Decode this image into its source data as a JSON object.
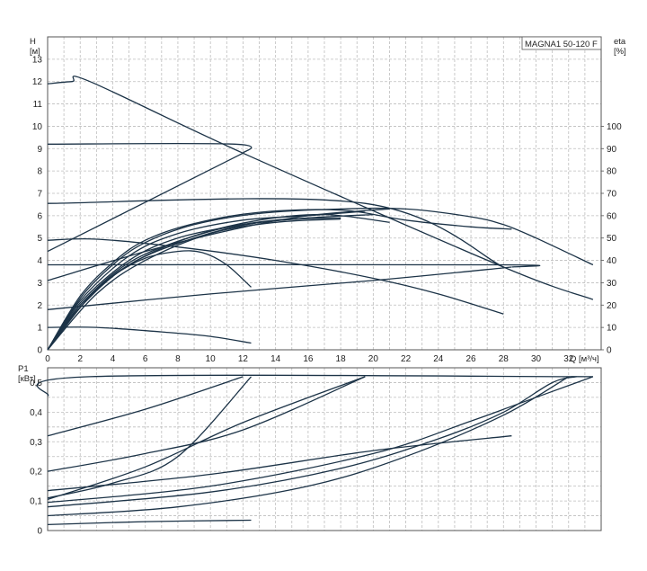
{
  "chart_data": [
    {
      "type": "line",
      "title": "MAGNA1 50-120 F",
      "xlabel": "Q [м³/ч]",
      "ylabel": "H [м]",
      "ylabel_right": "eta [%]",
      "xlim": [
        0,
        34
      ],
      "ylim": [
        0,
        14
      ],
      "ylim_right": [
        0,
        140
      ],
      "grid": true,
      "x_ticks": [
        0,
        2,
        4,
        6,
        8,
        10,
        12,
        14,
        16,
        18,
        20,
        22,
        24,
        26,
        28,
        30,
        32
      ],
      "y_ticks": [
        0,
        1,
        2,
        3,
        4,
        5,
        6,
        7,
        8,
        9,
        10,
        11,
        12,
        13
      ],
      "y_right_ticks": [
        0,
        10,
        20,
        30,
        40,
        50,
        60,
        70,
        80,
        90,
        100
      ],
      "series": [
        {
          "values": [
            [
              0,
              11.9
            ],
            [
              1.5,
              12.0
            ],
            [
              2.6,
              12.0
            ],
            [
              12,
              8.8
            ],
            [
              28,
              3.7
            ],
            [
              33.5,
              2.25
            ]
          ]
        },
        {
          "values": [
            [
              0,
              9.2
            ],
            [
              11.5,
              9.2
            ],
            [
              12,
              8.8
            ]
          ]
        },
        {
          "values": [
            [
              0,
              6.55
            ],
            [
              19.5,
              6.55
            ],
            [
              28,
              3.7
            ]
          ]
        },
        {
          "values": [
            [
              0,
              3.8
            ],
            [
              28,
              3.8
            ],
            [
              28.5,
              3.7
            ]
          ]
        },
        {
          "values": [
            [
              0,
              4.4
            ],
            [
              12,
              8.8
            ]
          ]
        },
        {
          "values": [
            [
              0,
              3.1
            ],
            [
              6,
              4.4
            ],
            [
              11.5,
              5.4
            ],
            [
              16,
              6.0
            ],
            [
              21,
              6.3
            ]
          ]
        },
        {
          "values": [
            [
              0,
              1.8
            ],
            [
              10,
              2.5
            ],
            [
              20,
              3.1
            ],
            [
              28.5,
              3.7
            ]
          ]
        },
        {
          "values": [
            [
              0,
              4.9
            ],
            [
              3,
              4.95
            ],
            [
              8,
              4.6
            ],
            [
              14,
              4.0
            ],
            [
              20,
              3.2
            ],
            [
              24,
              2.5
            ],
            [
              28,
              1.6
            ]
          ]
        },
        {
          "values": [
            [
              0,
              1.0
            ],
            [
              3,
              1.0
            ],
            [
              7,
              0.8
            ],
            [
              10,
              0.6
            ],
            [
              12.5,
              0.3
            ]
          ]
        },
        {
          "values": [
            [
              0,
              0
            ],
            [
              2,
              2.0
            ],
            [
              4,
              3.3
            ],
            [
              6,
              4.1
            ],
            [
              8,
              4.4
            ],
            [
              9.5,
              4.35
            ],
            [
              11,
              3.8
            ],
            [
              12.5,
              2.8
            ]
          ]
        },
        {
          "values": [
            [
              0,
              0
            ],
            [
              2,
              2.3
            ],
            [
              4,
              3.8
            ],
            [
              6,
              4.8
            ],
            [
              9,
              5.6
            ],
            [
              13,
              6.1
            ],
            [
              18,
              6.3
            ],
            [
              22,
              6.3
            ],
            [
              26,
              5.95
            ],
            [
              28,
              5.6
            ],
            [
              30,
              5.0
            ],
            [
              33.5,
              3.8
            ]
          ]
        },
        {
          "values": [
            [
              0,
              0
            ],
            [
              2,
              2.4
            ],
            [
              4,
              3.9
            ],
            [
              6,
              4.9
            ],
            [
              9,
              5.65
            ],
            [
              13,
              6.15
            ],
            [
              18,
              6.25
            ],
            [
              22,
              5.8
            ],
            [
              26,
              5.5
            ],
            [
              28.5,
              5.4
            ]
          ]
        },
        {
          "values": [
            [
              0,
              0
            ],
            [
              2,
              2.2
            ],
            [
              5,
              4.2
            ],
            [
              8,
              5.2
            ],
            [
              12,
              5.8
            ],
            [
              16,
              6.0
            ],
            [
              19.5,
              6.2
            ]
          ]
        },
        {
          "values": [
            [
              0,
              0
            ],
            [
              2,
              2.1
            ],
            [
              5,
              4.0
            ],
            [
              8,
              5.0
            ],
            [
              12,
              5.6
            ],
            [
              16,
              5.9
            ],
            [
              20,
              6.05
            ]
          ]
        },
        {
          "values": [
            [
              0,
              0
            ],
            [
              2,
              2.0
            ],
            [
              5,
              3.9
            ],
            [
              9,
              5.1
            ],
            [
              13,
              5.8
            ],
            [
              17,
              6.05
            ],
            [
              21,
              5.7
            ]
          ]
        },
        {
          "values": [
            [
              0,
              0
            ],
            [
              2,
              1.9
            ],
            [
              5,
              3.8
            ],
            [
              9,
              5.0
            ],
            [
              13,
              5.7
            ],
            [
              17,
              5.9
            ]
          ]
        },
        {
          "values": [
            [
              0,
              0
            ],
            [
              3,
              2.7
            ],
            [
              6,
              4.2
            ],
            [
              10,
              5.3
            ],
            [
              14,
              5.8
            ],
            [
              18,
              5.9
            ]
          ]
        },
        {
          "values": [
            [
              0,
              0
            ],
            [
              3,
              2.5
            ],
            [
              6,
              4.0
            ],
            [
              10,
              5.2
            ],
            [
              14,
              5.7
            ],
            [
              18,
              5.85
            ]
          ]
        }
      ]
    },
    {
      "type": "line",
      "ylabel": "P1 [кВт]",
      "xlim": [
        0,
        34
      ],
      "ylim": [
        0,
        0.55
      ],
      "grid": true,
      "y_ticks": [
        "0",
        "0,1",
        "0,2",
        "0,3",
        "0,4",
        "0,5"
      ],
      "y_tick_values": [
        0,
        0.1,
        0.2,
        0.3,
        0.4,
        0.5
      ],
      "series": [
        {
          "values": [
            [
              0,
              0.455
            ],
            [
              2.6,
              0.52
            ],
            [
              33.5,
              0.52
            ]
          ]
        },
        {
          "values": [
            [
              0,
              0.32
            ],
            [
              6,
              0.41
            ],
            [
              12,
              0.52
            ]
          ]
        },
        {
          "values": [
            [
              0,
              0.2
            ],
            [
              6,
              0.26
            ],
            [
              12,
              0.34
            ],
            [
              19.5,
              0.52
            ]
          ]
        },
        {
          "values": [
            [
              0,
              0.105
            ],
            [
              6,
              0.215
            ],
            [
              12,
              0.365
            ],
            [
              19.5,
              0.52
            ]
          ]
        },
        {
          "values": [
            [
              0,
              0.11
            ],
            [
              4,
              0.16
            ],
            [
              8,
              0.25
            ],
            [
              12.5,
              0.52
            ]
          ]
        },
        {
          "values": [
            [
              0,
              0.135
            ],
            [
              10,
              0.19
            ],
            [
              20,
              0.27
            ],
            [
              28.5,
              0.32
            ]
          ]
        },
        {
          "values": [
            [
              0,
              0.095
            ],
            [
              10,
              0.15
            ],
            [
              20,
              0.26
            ],
            [
              26,
              0.37
            ],
            [
              28.5,
              0.42
            ],
            [
              31,
              0.47
            ],
            [
              33.5,
              0.52
            ]
          ]
        },
        {
          "values": [
            [
              0,
              0.08
            ],
            [
              10,
              0.13
            ],
            [
              18,
              0.21
            ],
            [
              24,
              0.31
            ],
            [
              28,
              0.4
            ],
            [
              31,
              0.5
            ],
            [
              32.5,
              0.52
            ]
          ]
        },
        {
          "values": [
            [
              0,
              0.05
            ],
            [
              8,
              0.08
            ],
            [
              16,
              0.15
            ],
            [
              22,
              0.25
            ],
            [
              28,
              0.39
            ],
            [
              32,
              0.52
            ]
          ]
        },
        {
          "values": [
            [
              0,
              0.02
            ],
            [
              6,
              0.03
            ],
            [
              12.5,
              0.035
            ]
          ]
        }
      ]
    }
  ]
}
